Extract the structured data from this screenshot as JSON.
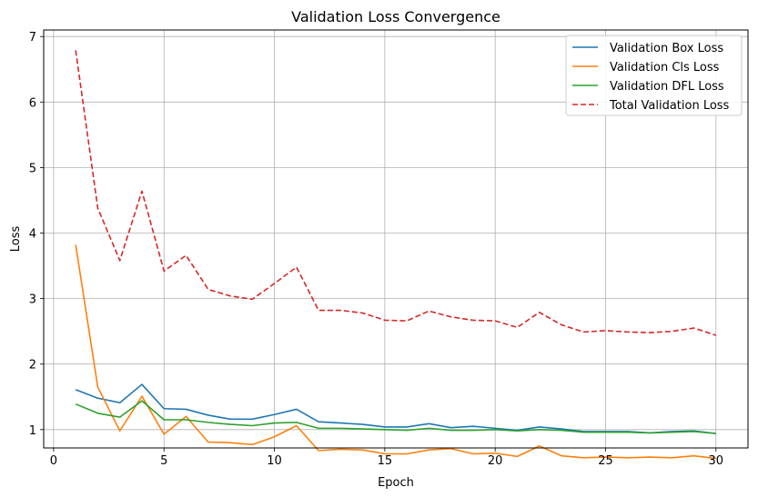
{
  "chart_data": {
    "type": "line",
    "title": "Validation Loss Convergence",
    "xlabel": "Epoch",
    "ylabel": "Loss",
    "xlim": [
      -0.45,
      31.45
    ],
    "ylim": [
      0.72,
      7.1
    ],
    "x_ticks": [
      0,
      5,
      10,
      15,
      20,
      25,
      30
    ],
    "y_ticks": [
      1,
      2,
      3,
      4,
      5,
      6,
      7
    ],
    "grid": true,
    "legend_position": "top-right",
    "x": [
      1,
      2,
      3,
      4,
      5,
      6,
      7,
      8,
      9,
      10,
      11,
      12,
      13,
      14,
      15,
      16,
      17,
      18,
      19,
      20,
      21,
      22,
      23,
      24,
      25,
      26,
      27,
      28,
      29,
      30
    ],
    "series": [
      {
        "name": "Validation Box Loss",
        "color": "#1f77b4",
        "style": "solid",
        "values": [
          1.61,
          1.48,
          1.41,
          1.69,
          1.32,
          1.31,
          1.22,
          1.16,
          1.16,
          1.23,
          1.31,
          1.12,
          1.1,
          1.08,
          1.04,
          1.04,
          1.09,
          1.03,
          1.05,
          1.02,
          0.99,
          1.04,
          1.01,
          0.97,
          0.97,
          0.97,
          0.95,
          0.97,
          0.98,
          0.94
        ]
      },
      {
        "name": "Validation Cls Loss",
        "color": "#ff7f0e",
        "style": "solid",
        "values": [
          3.82,
          1.65,
          0.98,
          1.51,
          0.93,
          1.2,
          0.81,
          0.8,
          0.77,
          0.89,
          1.06,
          0.68,
          0.7,
          0.69,
          0.63,
          0.63,
          0.69,
          0.71,
          0.63,
          0.64,
          0.59,
          0.75,
          0.6,
          0.57,
          0.58,
          0.57,
          0.58,
          0.57,
          0.6,
          0.56
        ]
      },
      {
        "name": "Validation DFL Loss",
        "color": "#2ca02c",
        "style": "solid",
        "values": [
          1.39,
          1.25,
          1.19,
          1.44,
          1.15,
          1.15,
          1.11,
          1.08,
          1.06,
          1.1,
          1.11,
          1.02,
          1.02,
          1.01,
          1.0,
          0.99,
          1.02,
          0.99,
          0.99,
          1.0,
          0.98,
          1.0,
          0.99,
          0.96,
          0.96,
          0.96,
          0.95,
          0.96,
          0.97,
          0.94
        ]
      },
      {
        "name": "Total Validation Loss",
        "color": "#d62728",
        "style": "dashed",
        "values": [
          6.79,
          4.38,
          3.58,
          4.64,
          3.42,
          3.66,
          3.14,
          3.04,
          2.99,
          3.23,
          3.48,
          2.82,
          2.82,
          2.78,
          2.67,
          2.66,
          2.81,
          2.72,
          2.67,
          2.66,
          2.56,
          2.79,
          2.6,
          2.49,
          2.51,
          2.49,
          2.48,
          2.5,
          2.55,
          2.44
        ]
      }
    ]
  }
}
